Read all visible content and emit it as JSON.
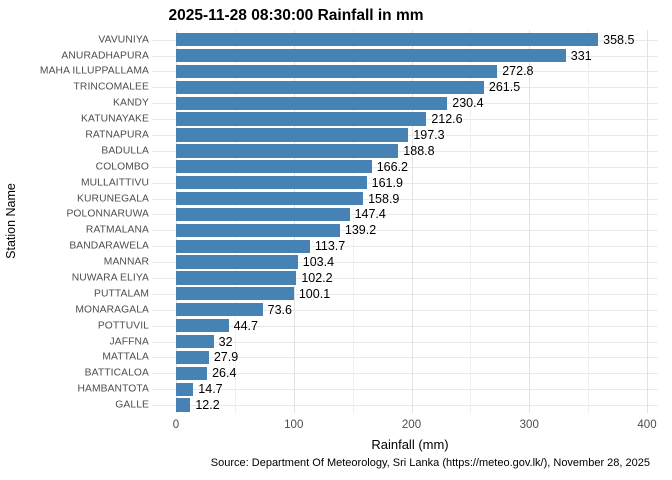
{
  "chart_data": {
    "type": "bar",
    "orientation": "horizontal",
    "title": "2025-11-28 08:30:00 Rainfall in mm",
    "xlabel": "Rainfall (mm)",
    "ylabel": "Station Name",
    "caption": "Source: Department Of Meteorology, Sri Lanka (https://meteo.gov.lk/), November 28, 2025",
    "categories": [
      "VAVUNIYA",
      "ANURADHAPURA",
      "MAHA ILLUPPALLAMA",
      "TRINCOMALEE",
      "KANDY",
      "KATUNAYAKE",
      "RATNAPURA",
      "BADULLA",
      "COLOMBO",
      "MULLAITTIVU",
      "KURUNEGALA",
      "POLONNARUWA",
      "RATMALANA",
      "BANDARAWELA",
      "MANNAR",
      "NUWARA ELIYA",
      "PUTTALAM",
      "MONARAGALA",
      "POTTUVIL",
      "JAFFNA",
      "MATTALA",
      "BATTICALOA",
      "HAMBANTOTA",
      "GALLE"
    ],
    "values": [
      358.5,
      331,
      272.8,
      261.5,
      230.4,
      212.6,
      197.3,
      188.8,
      166.2,
      161.9,
      158.9,
      147.4,
      139.2,
      113.7,
      103.4,
      102.2,
      100.1,
      73.6,
      44.7,
      32,
      27.9,
      26.4,
      14.7,
      12.2
    ],
    "value_labels": [
      "358.5",
      "331",
      "272.8",
      "261.5",
      "230.4",
      "212.6",
      "197.3",
      "188.8",
      "166.2",
      "161.9",
      "158.9",
      "147.4",
      "139.2",
      "113.7",
      "103.4",
      "102.2",
      "100.1",
      "73.6",
      "44.7",
      "32",
      "27.9",
      "26.4",
      "14.7",
      "12.2"
    ],
    "xlim": [
      0,
      400
    ],
    "x_ticks": [
      0,
      100,
      200,
      300,
      400
    ],
    "x_minor_ticks": [
      50,
      150,
      250,
      350
    ],
    "grid": true,
    "legend": "none",
    "bar_color": "#4682B4",
    "background_color": "#ffffff"
  }
}
